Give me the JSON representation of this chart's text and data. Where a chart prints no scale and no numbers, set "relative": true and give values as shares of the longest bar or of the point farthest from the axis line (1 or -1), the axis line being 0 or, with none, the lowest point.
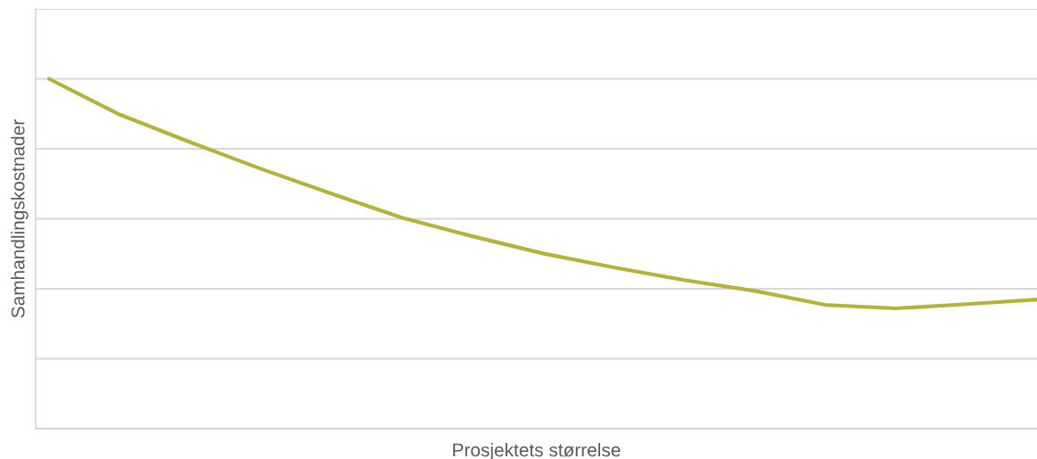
{
  "chart_data": {
    "type": "line",
    "relative": true,
    "xlabel": "Prosjektets størrelse",
    "ylabel": "Samhandlingskostnader",
    "grid": "y",
    "categories": [
      null,
      null,
      null,
      null,
      null,
      null,
      null,
      null,
      null,
      null,
      null,
      null,
      null,
      null,
      null
    ],
    "series": [
      {
        "color": "#b3b33a",
        "values": [
          1.0,
          0.898,
          0.819,
          0.743,
          0.672,
          0.603,
          0.55,
          0.501,
          0.461,
          0.425,
          0.394,
          0.354,
          0.344,
          0.356,
          0.369
        ]
      }
    ]
  }
}
